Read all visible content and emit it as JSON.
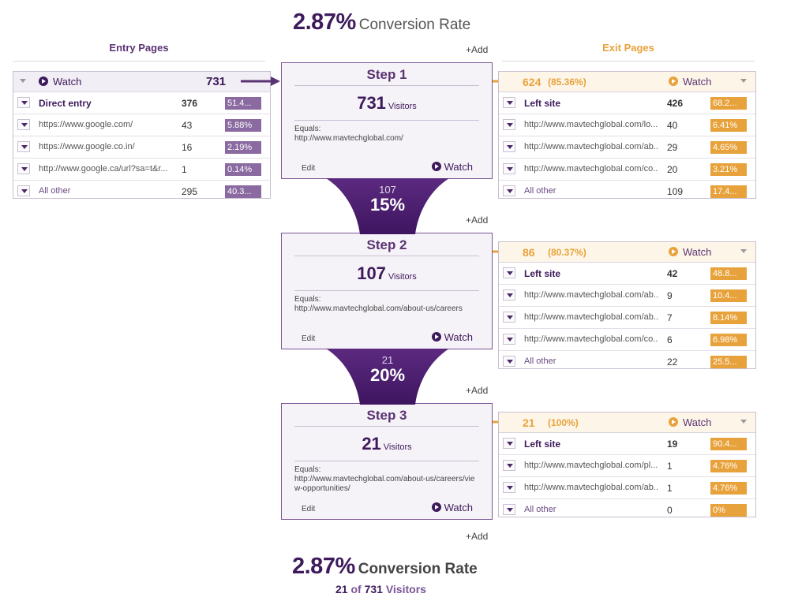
{
  "top": {
    "rate": "2.87%",
    "label": "Conversion Rate"
  },
  "bottom": {
    "rate": "2.87%",
    "label": "Conversion Rate",
    "converted": "21",
    "of": "of",
    "total": "731",
    "visitors_label": "Visitors"
  },
  "headers": {
    "entry": "Entry Pages",
    "exit": "Exit Pages"
  },
  "add_label": "+Add",
  "watch_label": "Watch",
  "entry": {
    "count": "731",
    "rows": [
      {
        "name": "Direct entry",
        "count": "376",
        "pct": "51.4...",
        "fill": 0.514
      },
      {
        "name": "https://www.google.com/",
        "count": "43",
        "pct": "5.88%",
        "fill": 0.0588
      },
      {
        "name": "https://www.google.co.in/",
        "count": "16",
        "pct": "2.19%",
        "fill": 0.0219
      },
      {
        "name": "http://www.google.ca/url?sa=t&r...",
        "count": "1",
        "pct": "0.14%",
        "fill": 0.0014
      },
      {
        "name": "All other",
        "count": "295",
        "pct": "40.3...",
        "fill": 0.403
      }
    ]
  },
  "steps": [
    {
      "title": "Step 1",
      "visitors": "731",
      "visitors_label": "Visitors",
      "equals_label": "Equals:",
      "url": "http://www.mavtechglobal.com/",
      "edit": "Edit"
    },
    {
      "title": "Step 2",
      "visitors": "107",
      "visitors_label": "Visitors",
      "equals_label": "Equals:",
      "url": "http://www.mavtechglobal.com/about-us/careers",
      "edit": "Edit"
    },
    {
      "title": "Step 3",
      "visitors": "21",
      "visitors_label": "Visitors",
      "equals_label": "Equals:",
      "url": "http://www.mavtechglobal.com/about-us/careers/view-opportunities/",
      "edit": "Edit"
    }
  ],
  "funnels": [
    {
      "count": "107",
      "pct": "15%"
    },
    {
      "count": "21",
      "pct": "20%"
    }
  ],
  "exits": [
    {
      "count": "624",
      "pct": "(85.36%)",
      "rows": [
        {
          "name": "Left site",
          "count": "426",
          "pct": "68.2...",
          "fill": 0.682
        },
        {
          "name": "http://www.mavtechglobal.com/lo...",
          "count": "40",
          "pct": "6.41%",
          "fill": 0.0641
        },
        {
          "name": "http://www.mavtechglobal.com/ab...",
          "count": "29",
          "pct": "4.65%",
          "fill": 0.0465
        },
        {
          "name": "http://www.mavtechglobal.com/co...",
          "count": "20",
          "pct": "3.21%",
          "fill": 0.0321
        },
        {
          "name": "All other",
          "count": "109",
          "pct": "17.4...",
          "fill": 0.174
        }
      ]
    },
    {
      "count": "86",
      "pct": "(80.37%)",
      "rows": [
        {
          "name": "Left site",
          "count": "42",
          "pct": "48.8...",
          "fill": 0.488
        },
        {
          "name": "http://www.mavtechglobal.com/ab...",
          "count": "9",
          "pct": "10.4...",
          "fill": 0.104
        },
        {
          "name": "http://www.mavtechglobal.com/ab...",
          "count": "7",
          "pct": "8.14%",
          "fill": 0.0814
        },
        {
          "name": "http://www.mavtechglobal.com/co...",
          "count": "6",
          "pct": "6.98%",
          "fill": 0.0698
        },
        {
          "name": "All other",
          "count": "22",
          "pct": "25.5...",
          "fill": 0.255
        }
      ]
    },
    {
      "count": "21",
      "pct": "(100%)",
      "rows": [
        {
          "name": "Left site",
          "count": "19",
          "pct": "90.4...",
          "fill": 0.904
        },
        {
          "name": "http://www.mavtechglobal.com/pl...",
          "count": "1",
          "pct": "4.76%",
          "fill": 0.0476
        },
        {
          "name": "http://www.mavtechglobal.com/ab...",
          "count": "1",
          "pct": "4.76%",
          "fill": 0.0476
        },
        {
          "name": "All other",
          "count": "0",
          "pct": "0%",
          "fill": 0
        }
      ]
    }
  ]
}
